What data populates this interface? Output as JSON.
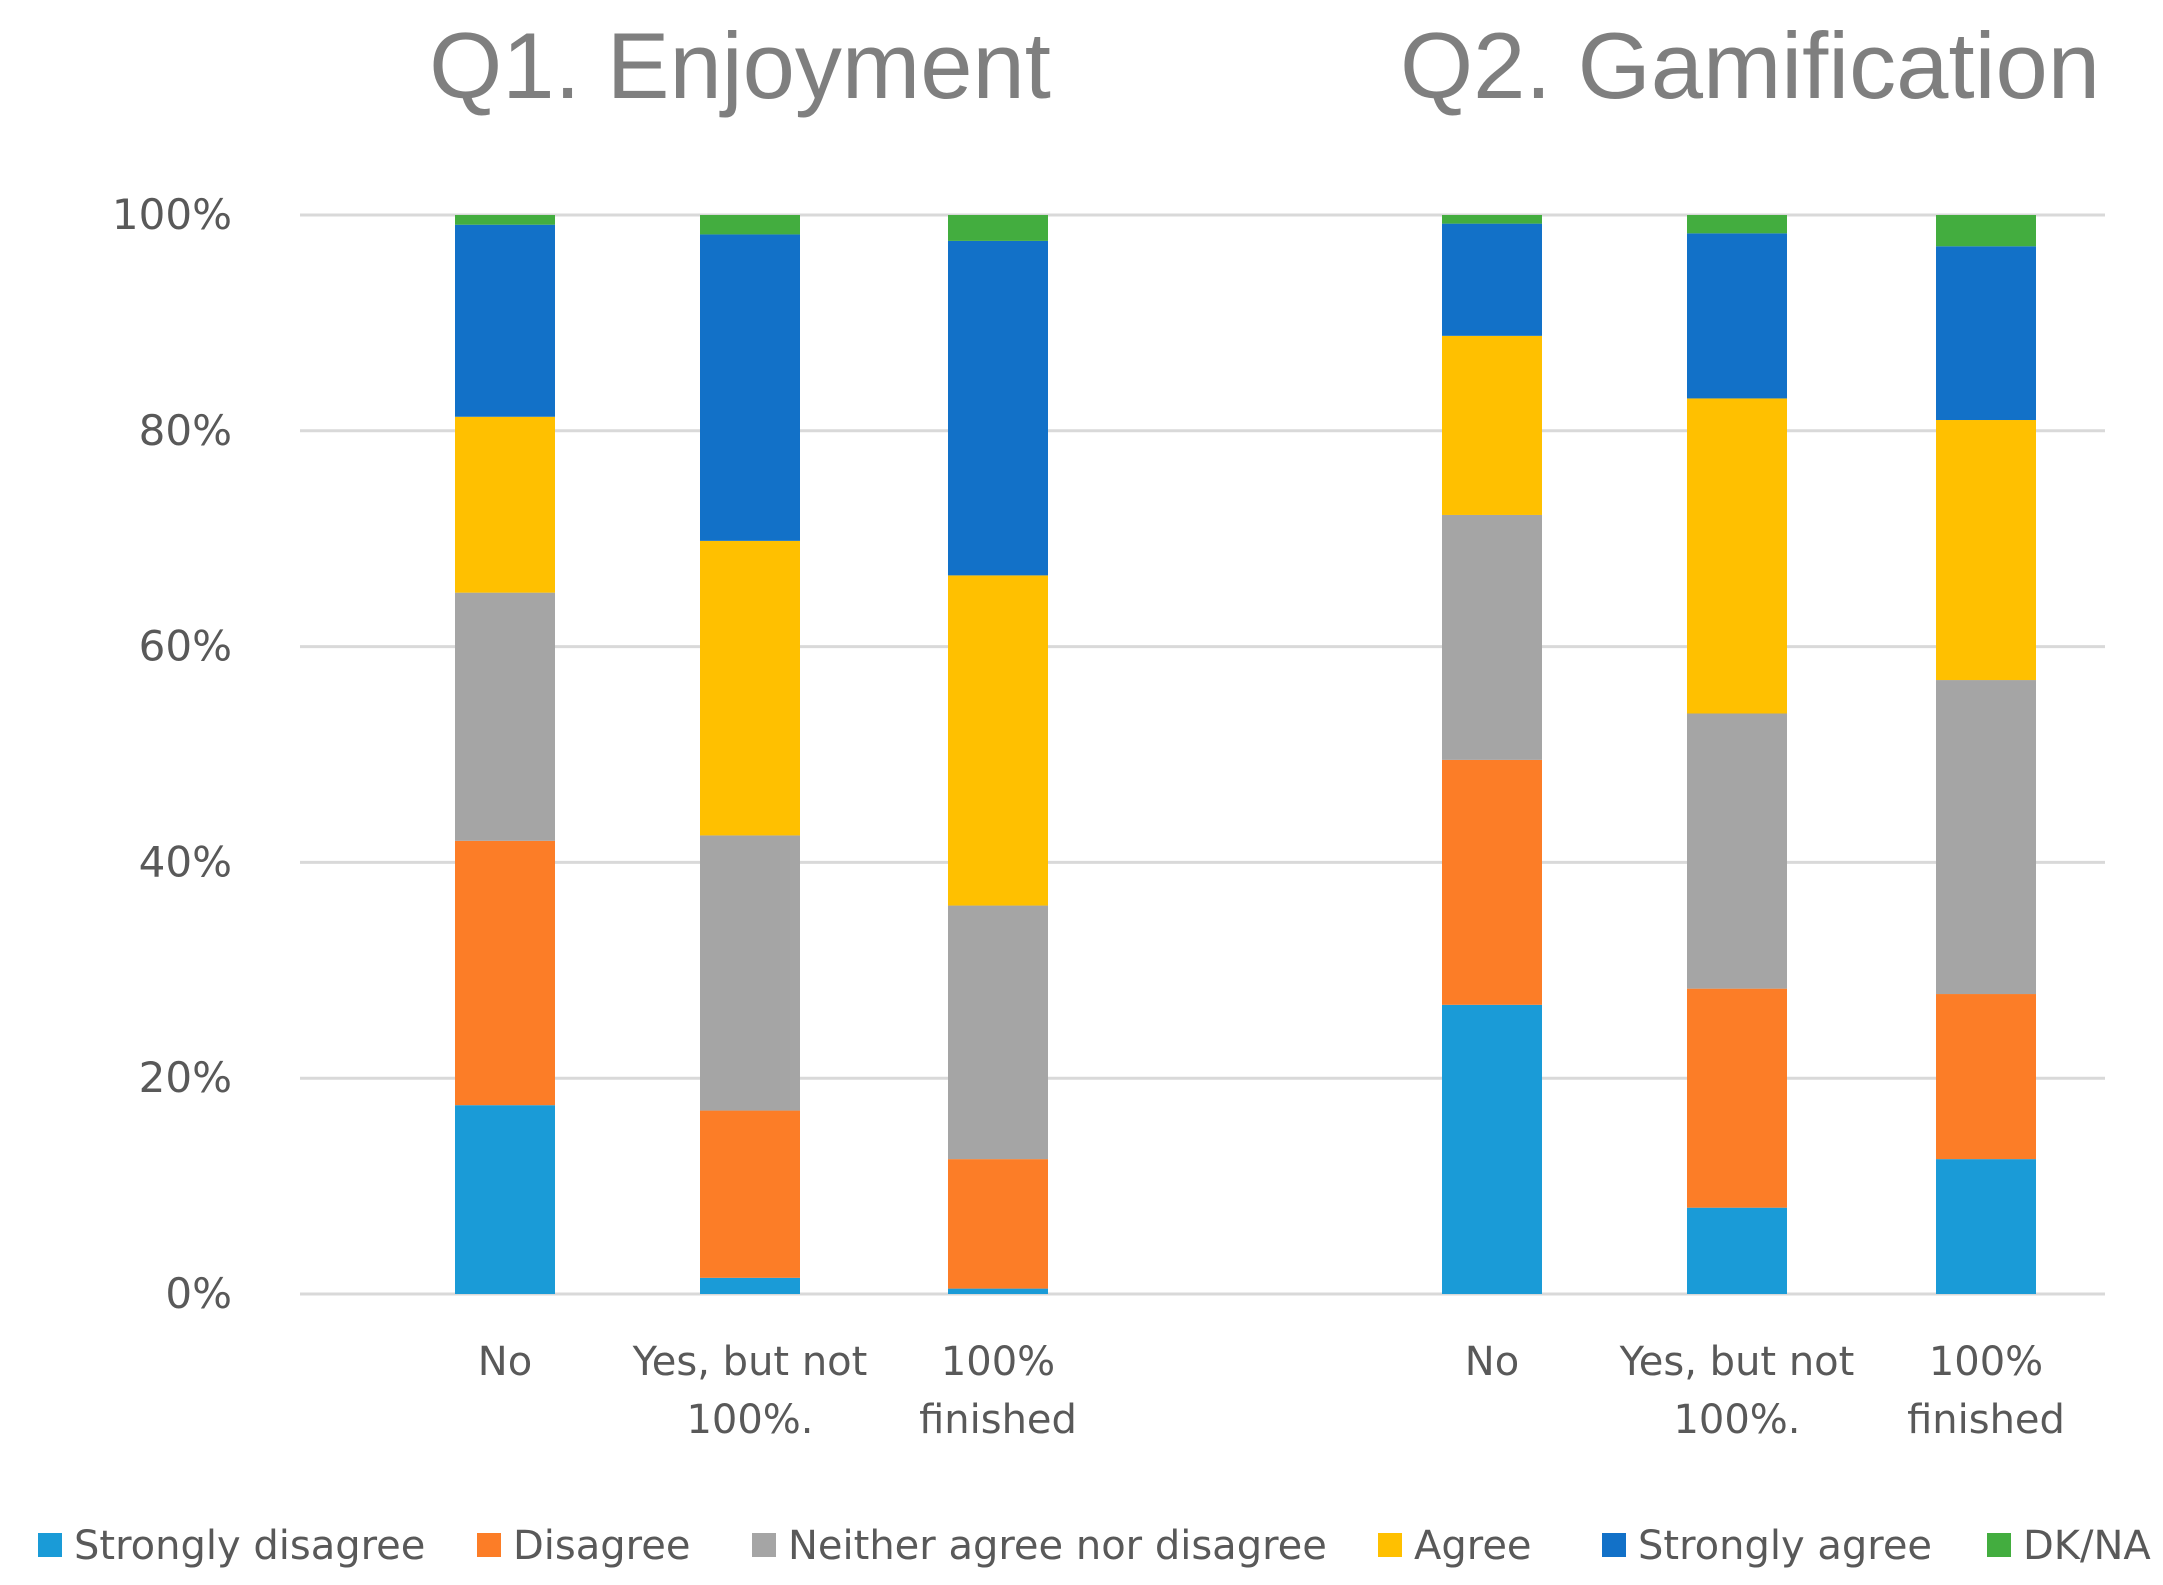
{
  "chart_data": {
    "type": "bar",
    "stacked": true,
    "orientation": "vertical",
    "y_axis": {
      "ticks": [
        "0%",
        "20%",
        "40%",
        "60%",
        "80%",
        "100%"
      ],
      "ylim": [
        0,
        100
      ]
    },
    "legend": {
      "placement": "bottom",
      "entries": [
        "Strongly disagree",
        "Disagree",
        "Neither agree nor disagree",
        "Agree",
        "Strongly agree",
        "DK/NA"
      ]
    },
    "colors": [
      "#1a9bd7",
      "#fc7d27",
      "#a5a5a5",
      "#ffc000",
      "#1271c8",
      "#43ad3f"
    ],
    "panels": [
      {
        "title": "Q1. Enjoyment",
        "categories": [
          [
            "No"
          ],
          [
            "Yes, but not",
            "100%."
          ],
          [
            "100%",
            "finished"
          ]
        ],
        "series": [
          {
            "name": "Strongly disagree",
            "values": [
              17.5,
              1.5,
              0.5
            ]
          },
          {
            "name": "Disagree",
            "values": [
              24.5,
              15.5,
              12
            ]
          },
          {
            "name": "Neither agree nor disagree",
            "values": [
              23,
              25.5,
              23.5
            ]
          },
          {
            "name": "Agree",
            "values": [
              16.3,
              27.3,
              30.6
            ]
          },
          {
            "name": "Strongly agree",
            "values": [
              17.8,
              28.4,
              31
            ]
          },
          {
            "name": "DK/NA",
            "values": [
              0.9,
              1.8,
              2.4
            ]
          }
        ]
      },
      {
        "title": "Q2. Gamification",
        "categories": [
          [
            "No"
          ],
          [
            "Yes, but not",
            "100%."
          ],
          [
            "100%",
            "finished"
          ]
        ],
        "series": [
          {
            "name": "Strongly disagree",
            "values": [
              26.8,
              8,
              12.5
            ]
          },
          {
            "name": "Disagree",
            "values": [
              22.7,
              20.3,
              15.3
            ]
          },
          {
            "name": "Neither agree nor disagree",
            "values": [
              22.7,
              25.5,
              29.1
            ]
          },
          {
            "name": "Agree",
            "values": [
              16.6,
              29.2,
              24.1
            ]
          },
          {
            "name": "Strongly agree",
            "values": [
              10.4,
              15.3,
              16.1
            ]
          },
          {
            "name": "DK/NA",
            "values": [
              0.8,
              1.7,
              2.9
            ]
          }
        ]
      }
    ]
  }
}
